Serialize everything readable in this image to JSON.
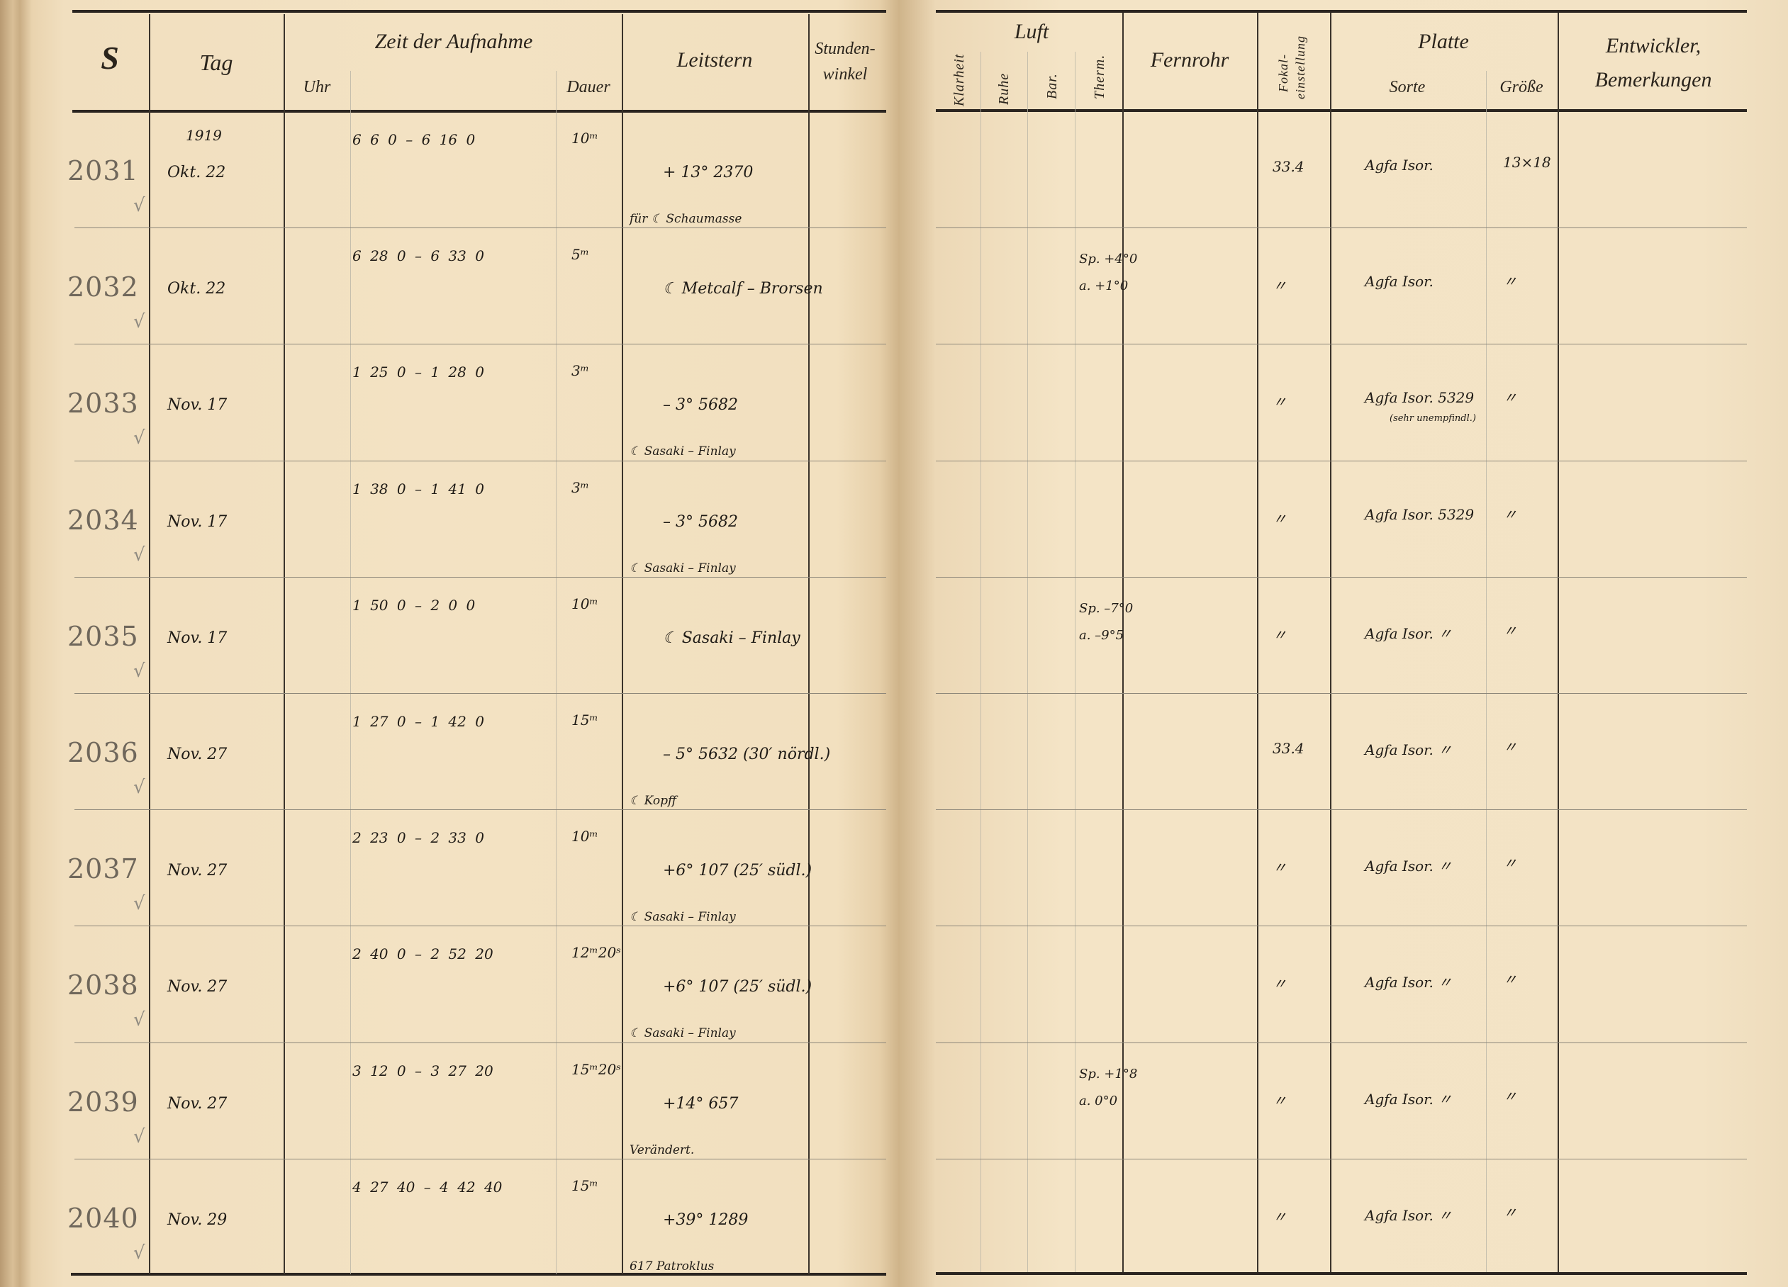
{
  "header": {
    "s": "S",
    "tag": "Tag",
    "zeit": "Zeit der Aufnahme",
    "uhr": "Uhr",
    "dauer": "Dauer",
    "leitstern": "Leitstern",
    "stundenwinkel_1": "Stunden-",
    "stundenwinkel_2": "winkel",
    "luft": "Luft",
    "klarheit": "Klarheit",
    "ruhe": "Ruhe",
    "bar": "Bar.",
    "therm": "Therm.",
    "fernrohr": "Fernrohr",
    "fokal_1": "Fokal-",
    "fokal_2": "einstellung",
    "platte": "Platte",
    "sorte": "Sorte",
    "groesse": "Größe",
    "entwickler": "Entwickler,",
    "bemerkungen": "Bemerkungen"
  },
  "rows": [
    {
      "s": "2031",
      "check": "√",
      "year": "1919",
      "tag": "Okt. 22",
      "zeit": "6 6 0 – 6 16 0",
      "dauer": "10ᵐ",
      "leitstern": "+ 13° 2370",
      "note": "für ☾ Schaumasse",
      "therm1": "",
      "therm2": "",
      "fokal": "33.4",
      "sorte": "Agfa Isor.",
      "sorte_note": "",
      "groesse": "13×18"
    },
    {
      "s": "2032",
      "check": "√",
      "year": "",
      "tag": "Okt. 22",
      "zeit": "6 28 0 – 6 33 0",
      "dauer": "5ᵐ",
      "leitstern": "☾ Metcalf – Brorsen",
      "note": "",
      "therm1": "Sp. +4°0",
      "therm2": "a. +1°0",
      "fokal": "〃",
      "sorte": "Agfa Isor.",
      "sorte_note": "",
      "groesse": "〃"
    },
    {
      "s": "2033",
      "check": "√",
      "year": "",
      "tag": "Nov. 17",
      "zeit": "1 25 0 – 1 28 0",
      "dauer": "3ᵐ",
      "leitstern": "– 3° 5682",
      "note": "☾ Sasaki – Finlay",
      "therm1": "",
      "therm2": "",
      "fokal": "〃",
      "sorte": "Agfa Isor. 5329",
      "sorte_note": "(sehr unempfindl.)",
      "groesse": "〃"
    },
    {
      "s": "2034",
      "check": "√",
      "year": "",
      "tag": "Nov. 17",
      "zeit": "1 38 0 – 1 41 0",
      "dauer": "3ᵐ",
      "leitstern": "– 3° 5682",
      "note": "☾ Sasaki – Finlay",
      "therm1": "",
      "therm2": "",
      "fokal": "〃",
      "sorte": "Agfa Isor. 5329",
      "sorte_note": "",
      "groesse": "〃"
    },
    {
      "s": "2035",
      "check": "√",
      "year": "",
      "tag": "Nov. 17",
      "zeit": "1 50 0 – 2 0 0",
      "dauer": "10ᵐ",
      "leitstern": "☾ Sasaki – Finlay",
      "note": "",
      "therm1": "Sp. –7°0",
      "therm2": "a. –9°5",
      "fokal": "〃",
      "sorte": "Agfa Isor. 〃",
      "sorte_note": "",
      "groesse": "〃"
    },
    {
      "s": "2036",
      "check": "√",
      "year": "",
      "tag": "Nov. 27",
      "zeit": "1 27 0 – 1 42 0",
      "dauer": "15ᵐ",
      "leitstern": "– 5° 5632 (30′ nördl.)",
      "note": "☾ Kopff",
      "therm1": "",
      "therm2": "",
      "fokal": "33.4",
      "sorte": "Agfa Isor. 〃",
      "sorte_note": "",
      "groesse": "〃"
    },
    {
      "s": "2037",
      "check": "√",
      "year": "",
      "tag": "Nov. 27",
      "zeit": "2 23 0 – 2 33 0",
      "dauer": "10ᵐ",
      "leitstern": "+6° 107 (25′ südl.)",
      "note": "☾ Sasaki – Finlay",
      "therm1": "",
      "therm2": "",
      "fokal": "〃",
      "sorte": "Agfa Isor. 〃",
      "sorte_note": "",
      "groesse": "〃"
    },
    {
      "s": "2038",
      "check": "√",
      "year": "",
      "tag": "Nov. 27",
      "zeit": "2 40 0 – 2 52 20",
      "dauer": "12ᵐ20ˢ",
      "leitstern": "+6° 107 (25′ südl.)",
      "note": "☾ Sasaki – Finlay",
      "therm1": "",
      "therm2": "",
      "fokal": "〃",
      "sorte": "Agfa Isor. 〃",
      "sorte_note": "",
      "groesse": "〃"
    },
    {
      "s": "2039",
      "check": "√",
      "year": "",
      "tag": "Nov. 27",
      "zeit": "3 12 0 – 3 27 20",
      "dauer": "15ᵐ20ˢ",
      "leitstern": "+14° 657",
      "note": "Verändert.",
      "therm1": "Sp. +1°8",
      "therm2": "a. 0°0",
      "fokal": "〃",
      "sorte": "Agfa Isor. 〃",
      "sorte_note": "",
      "groesse": "〃"
    },
    {
      "s": "2040",
      "check": "√",
      "year": "",
      "tag": "Nov. 29",
      "zeit": "4 27 40 – 4 42 40",
      "dauer": "15ᵐ",
      "leitstern": "+39° 1289",
      "note": "617 Patroklus",
      "therm1": "",
      "therm2": "",
      "fokal": "〃",
      "sorte": "Agfa Isor. 〃",
      "sorte_note": "",
      "groesse": "〃"
    }
  ]
}
